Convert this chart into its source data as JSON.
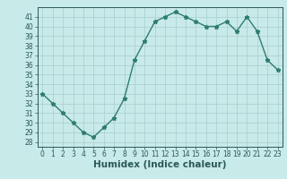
{
  "x": [
    0,
    1,
    2,
    3,
    4,
    5,
    6,
    7,
    8,
    9,
    10,
    11,
    12,
    13,
    14,
    15,
    16,
    17,
    18,
    19,
    20,
    21,
    22,
    23
  ],
  "y": [
    33,
    32,
    31,
    30,
    29,
    28.5,
    29.5,
    30.5,
    32.5,
    36.5,
    38.5,
    40.5,
    41,
    41.5,
    41,
    40.5,
    40,
    40,
    40.5,
    39.5,
    41,
    39.5,
    36.5,
    35.5
  ],
  "xlabel": "Humidex (Indice chaleur)",
  "ylim": [
    27.5,
    42
  ],
  "xlim": [
    -0.5,
    23.5
  ],
  "yticks": [
    28,
    29,
    30,
    31,
    32,
    33,
    34,
    35,
    36,
    37,
    38,
    39,
    40,
    41
  ],
  "xticks": [
    0,
    1,
    2,
    3,
    4,
    5,
    6,
    7,
    8,
    9,
    10,
    11,
    12,
    13,
    14,
    15,
    16,
    17,
    18,
    19,
    20,
    21,
    22,
    23
  ],
  "line_color": "#2e7d6e",
  "marker": "*",
  "bg_color": "#c8eae8",
  "grid_color": "#a8cece",
  "tick_label_color": "#2a5858",
  "label_fontsize": 5.5,
  "xlabel_fontsize": 7.5,
  "linewidth": 1.0,
  "markersize": 3.5
}
